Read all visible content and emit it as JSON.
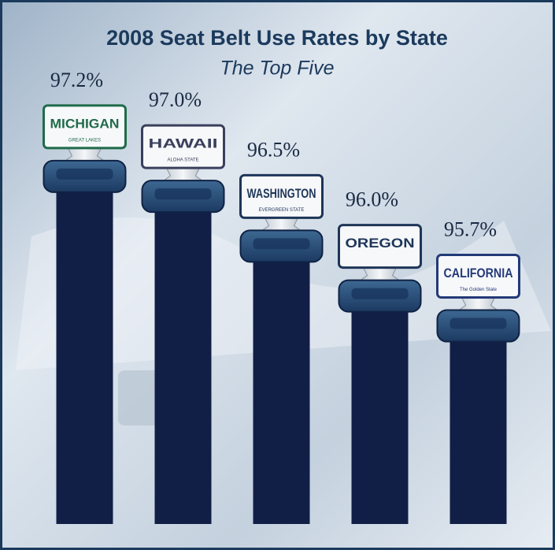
{
  "chart_data": {
    "type": "bar",
    "title": "2008 Seat Belt Use Rates by State",
    "subtitle": "The Top Five",
    "categories": [
      "MICHIGAN",
      "HAWAII",
      "WASHINGTON",
      "OREGON",
      "CALIFORNIA"
    ],
    "plate_mottos": [
      "GREAT LAKES",
      "ALOHA STATE",
      "EVERGREEN STATE",
      null,
      "The Golden State"
    ],
    "plate_colors": [
      "#1f6b4a",
      "#3a3f5c",
      "#1d3558",
      "#1d3558",
      "#233a78"
    ],
    "values": [
      97.2,
      97.0,
      96.5,
      96.0,
      95.7
    ],
    "value_labels": [
      "97.2%",
      "97.0%",
      "96.5%",
      "96.0%",
      "95.7%"
    ],
    "color": "#111f47",
    "ylim": [
      93.6,
      97.8
    ]
  }
}
